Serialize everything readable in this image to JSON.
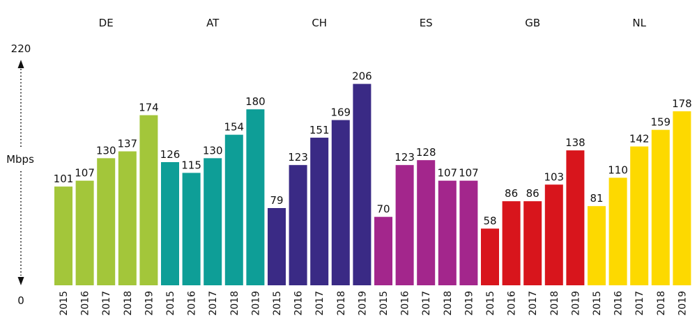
{
  "chart_data": {
    "type": "bar",
    "title": "",
    "xlabel": "",
    "ylabel": "Mbps",
    "ylim": [
      0,
      220
    ],
    "y_min_label": "0",
    "y_max_label": "220",
    "grid": false,
    "years": [
      "2015",
      "2016",
      "2017",
      "2018",
      "2019"
    ],
    "groups": [
      {
        "name": "DE",
        "color": "#a3c63a",
        "values": [
          101,
          107,
          130,
          137,
          174
        ],
        "value_labels": [
          "101",
          "107",
          "130",
          "137",
          "174"
        ]
      },
      {
        "name": "AT",
        "color": "#0e9e97",
        "values": [
          126,
          115,
          130,
          154,
          180
        ],
        "value_labels": [
          "126",
          "115",
          "130",
          "154",
          "180"
        ]
      },
      {
        "name": "CH",
        "color": "#3a2a85",
        "values": [
          79,
          123,
          151,
          169,
          206
        ],
        "value_labels": [
          "79",
          "123",
          "151",
          "169",
          "206"
        ]
      },
      {
        "name": "ES",
        "color": "#a3268c",
        "values": [
          70,
          123,
          128,
          107,
          107
        ],
        "value_labels": [
          "70",
          "123",
          "128",
          "107",
          "107"
        ]
      },
      {
        "name": "GB",
        "color": "#d8151c",
        "values": [
          58,
          86,
          86,
          103,
          138
        ],
        "value_labels": [
          "58",
          "86",
          "86",
          "103",
          "138"
        ]
      },
      {
        "name": "NL",
        "color": "#fdd900",
        "values": [
          81,
          110,
          142,
          159,
          178
        ],
        "value_labels": [
          "81",
          "110",
          "142",
          "159",
          "178"
        ]
      }
    ]
  }
}
